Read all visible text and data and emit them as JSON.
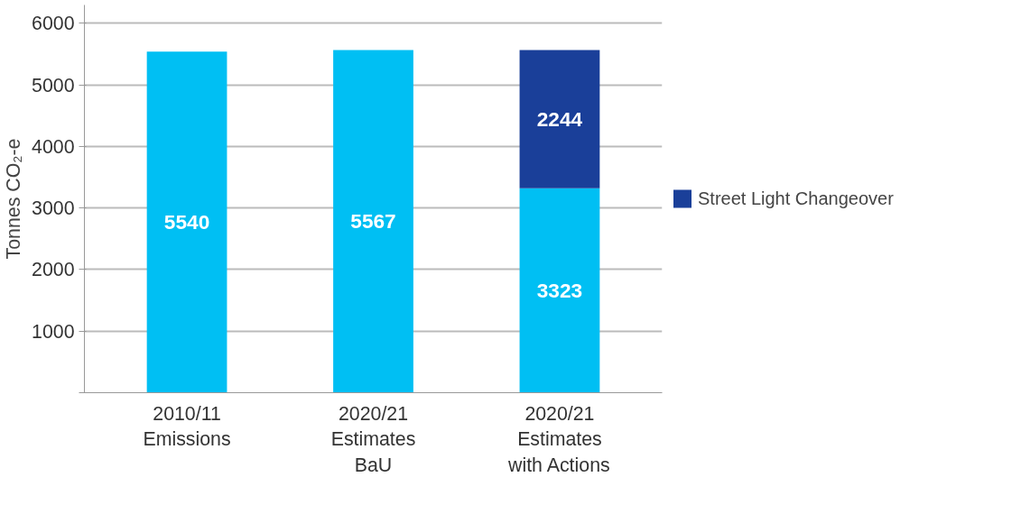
{
  "chart_data": {
    "type": "bar",
    "stacked": true,
    "ylabel": "Tonnes CO₂-e",
    "categories": [
      "2010/11\nEmissions",
      "2020/21\nEstimates\nBaU",
      "2020/21\nEstimates\nwith Actions"
    ],
    "series": [
      {
        "color": "#00bff3",
        "values": [
          5540,
          5567,
          3323
        ]
      },
      {
        "name": "Street Light Changeover",
        "color": "#1a3f99",
        "values": [
          null,
          null,
          2244
        ]
      }
    ],
    "ylim": [
      0,
      6300
    ],
    "yticks": [
      {
        "value": 0,
        "label": null
      },
      1000,
      2000,
      3000,
      4000,
      5000,
      6000
    ],
    "grid": "y",
    "legend": "right",
    "data_labels": true
  }
}
